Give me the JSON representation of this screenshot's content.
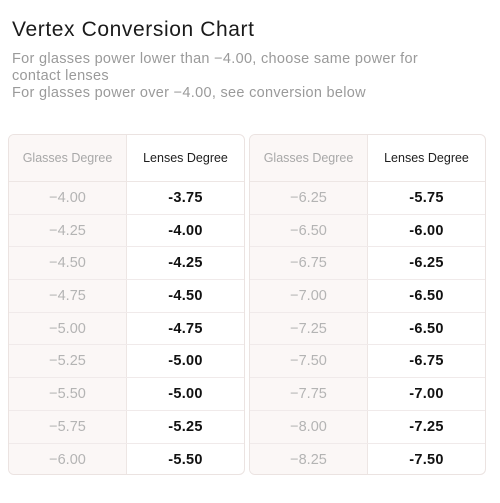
{
  "title": "Vertex Conversion Chart",
  "subtitle": {
    "line1": "For glasses power lower than −4.00, choose same power for",
    "line2": "contact lenses",
    "line3": "For glasses power over −4.00,  see conversion below"
  },
  "tables": [
    {
      "header": {
        "glasses": "Glasses Degree",
        "lenses": "Lenses Degree"
      },
      "rows": [
        {
          "glasses": "−4.00",
          "lenses": "-3.75"
        },
        {
          "glasses": "−4.25",
          "lenses": "-4.00"
        },
        {
          "glasses": "−4.50",
          "lenses": "-4.25"
        },
        {
          "glasses": "−4.75",
          "lenses": "-4.50"
        },
        {
          "glasses": "−5.00",
          "lenses": "-4.75"
        },
        {
          "glasses": "−5.25",
          "lenses": "-5.00"
        },
        {
          "glasses": "−5.50",
          "lenses": "-5.00"
        },
        {
          "glasses": "−5.75",
          "lenses": "-5.25"
        },
        {
          "glasses": "−6.00",
          "lenses": "-5.50"
        }
      ]
    },
    {
      "header": {
        "glasses": "Glasses Degree",
        "lenses": "Lenses Degree"
      },
      "rows": [
        {
          "glasses": "−6.25",
          "lenses": "-5.75"
        },
        {
          "glasses": "−6.50",
          "lenses": "-6.00"
        },
        {
          "glasses": "−6.75",
          "lenses": "-6.25"
        },
        {
          "glasses": "−7.00",
          "lenses": "-6.50"
        },
        {
          "glasses": "−7.25",
          "lenses": "-6.50"
        },
        {
          "glasses": "−7.50",
          "lenses": "-6.75"
        },
        {
          "glasses": "−7.75",
          "lenses": "-7.00"
        },
        {
          "glasses": "−8.00",
          "lenses": "-7.25"
        },
        {
          "glasses": "−8.25",
          "lenses": "-7.50"
        }
      ]
    }
  ]
}
